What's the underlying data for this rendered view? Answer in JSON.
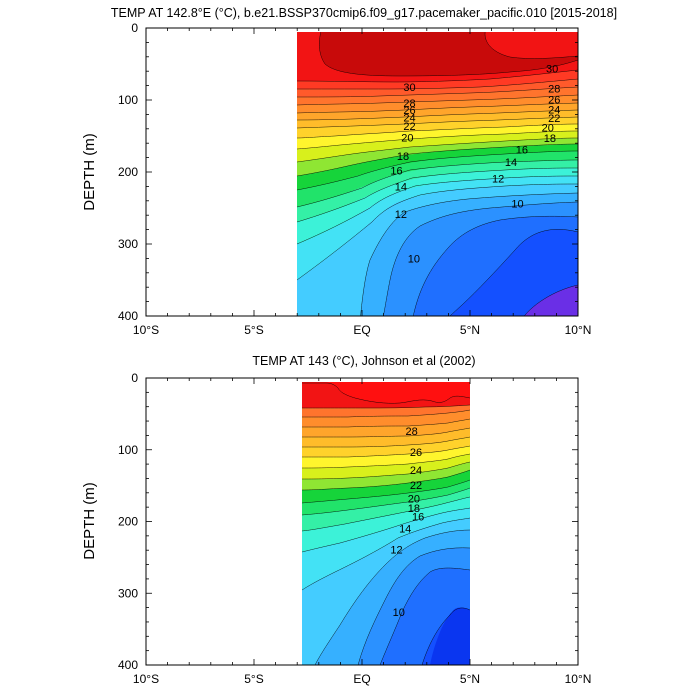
{
  "chart_data": [
    {
      "type": "heatmap",
      "subtype": "filled-contour",
      "title": "TEMP AT 142.8°E (°C), b.e21.BSSP370cmip6.f09_g17.pacemaker_pacific.010 [2015-2018]",
      "xlabel": "",
      "ylabel": "DEPTH (m)",
      "x_ticks": [
        "10°S",
        "5°S",
        "EQ",
        "5°N",
        "10°N"
      ],
      "x_tick_values": [
        -10,
        -5,
        0,
        5,
        10
      ],
      "y_ticks": [
        "0",
        "100",
        "200",
        "300",
        "400"
      ],
      "y_tick_values": [
        0,
        100,
        200,
        300,
        400
      ],
      "xlim": [
        -10,
        10
      ],
      "ylim": [
        400,
        0
      ],
      "data_extent_lat": [
        -3.5,
        10
      ],
      "data_extent_depth": [
        5,
        400
      ],
      "contour_levels": [
        30,
        28,
        26,
        24,
        22,
        20,
        18,
        16,
        14,
        12,
        10
      ],
      "contour_labels": [
        {
          "text": "30",
          "lat": 2.2,
          "depth": 82
        },
        {
          "text": "28",
          "lat": 2.2,
          "depth": 104
        },
        {
          "text": "26",
          "lat": 2.2,
          "depth": 114
        },
        {
          "text": "24",
          "lat": 2.2,
          "depth": 124
        },
        {
          "text": "22",
          "lat": 2.2,
          "depth": 136
        },
        {
          "text": "20",
          "lat": 2.1,
          "depth": 152
        },
        {
          "text": "18",
          "lat": 1.9,
          "depth": 178
        },
        {
          "text": "16",
          "lat": 1.6,
          "depth": 198
        },
        {
          "text": "14",
          "lat": 1.8,
          "depth": 220
        },
        {
          "text": "12",
          "lat": 1.8,
          "depth": 258
        },
        {
          "text": "10",
          "lat": 2.4,
          "depth": 320
        },
        {
          "text": "30",
          "lat": 8.8,
          "depth": 56
        },
        {
          "text": "28",
          "lat": 8.9,
          "depth": 84
        },
        {
          "text": "26",
          "lat": 8.9,
          "depth": 99
        },
        {
          "text": "24",
          "lat": 8.9,
          "depth": 113
        },
        {
          "text": "22",
          "lat": 8.9,
          "depth": 125
        },
        {
          "text": "20",
          "lat": 8.6,
          "depth": 138
        },
        {
          "text": "18",
          "lat": 8.7,
          "depth": 153
        },
        {
          "text": "16",
          "lat": 7.4,
          "depth": 169
        },
        {
          "text": "14",
          "lat": 6.9,
          "depth": 186
        },
        {
          "text": "12",
          "lat": 6.3,
          "depth": 209
        },
        {
          "text": "10",
          "lat": 7.2,
          "depth": 244
        }
      ]
    },
    {
      "type": "heatmap",
      "subtype": "filled-contour",
      "title": "TEMP AT 143 (°C), Johnson et al (2002)",
      "xlabel": "",
      "ylabel": "DEPTH (m)",
      "x_ticks": [
        "10°S",
        "5°S",
        "EQ",
        "5°N",
        "10°N"
      ],
      "x_tick_values": [
        -10,
        -5,
        0,
        5,
        10
      ],
      "y_ticks": [
        "0",
        "100",
        "200",
        "300",
        "400"
      ],
      "y_tick_values": [
        0,
        100,
        200,
        300,
        400
      ],
      "xlim": [
        -10,
        10
      ],
      "ylim": [
        400,
        0
      ],
      "data_extent_lat": [
        -2.8,
        5
      ],
      "data_extent_depth": [
        5,
        400
      ],
      "contour_levels": [
        28,
        26,
        24,
        22,
        20,
        18,
        16,
        14,
        12,
        10
      ],
      "contour_labels": [
        {
          "text": "28",
          "lat": 2.3,
          "depth": 74
        },
        {
          "text": "26",
          "lat": 2.5,
          "depth": 103
        },
        {
          "text": "24",
          "lat": 2.5,
          "depth": 128
        },
        {
          "text": "22",
          "lat": 2.5,
          "depth": 149
        },
        {
          "text": "20",
          "lat": 2.4,
          "depth": 168
        },
        {
          "text": "18",
          "lat": 2.4,
          "depth": 181
        },
        {
          "text": "16",
          "lat": 2.6,
          "depth": 193
        },
        {
          "text": "14",
          "lat": 2.0,
          "depth": 210
        },
        {
          "text": "12",
          "lat": 1.6,
          "depth": 239
        },
        {
          "text": "10",
          "lat": 1.7,
          "depth": 326
        }
      ]
    }
  ]
}
